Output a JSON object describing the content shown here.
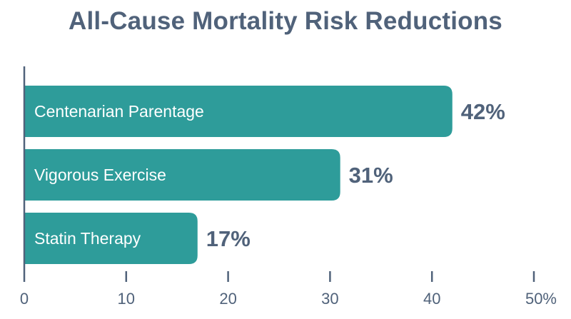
{
  "chart_data": {
    "type": "bar",
    "orientation": "horizontal",
    "title": "All-Cause Mortality Risk Reductions",
    "categories": [
      "Centenarian Parentage",
      "Vigorous Exercise",
      "Statin Therapy"
    ],
    "values": [
      42,
      31,
      17
    ],
    "value_labels": [
      "42%",
      "31%",
      "17%"
    ],
    "xlim": [
      0,
      50
    ],
    "x_ticks": [
      0,
      10,
      20,
      30,
      40,
      50
    ],
    "x_tick_labels": [
      "0",
      "10",
      "20",
      "30",
      "40",
      "50%"
    ],
    "xlabel": "",
    "ylabel": "",
    "grid": false,
    "colors": {
      "bar": "#2e9c9a",
      "text": "#50627a",
      "axis": "#50627a"
    }
  }
}
